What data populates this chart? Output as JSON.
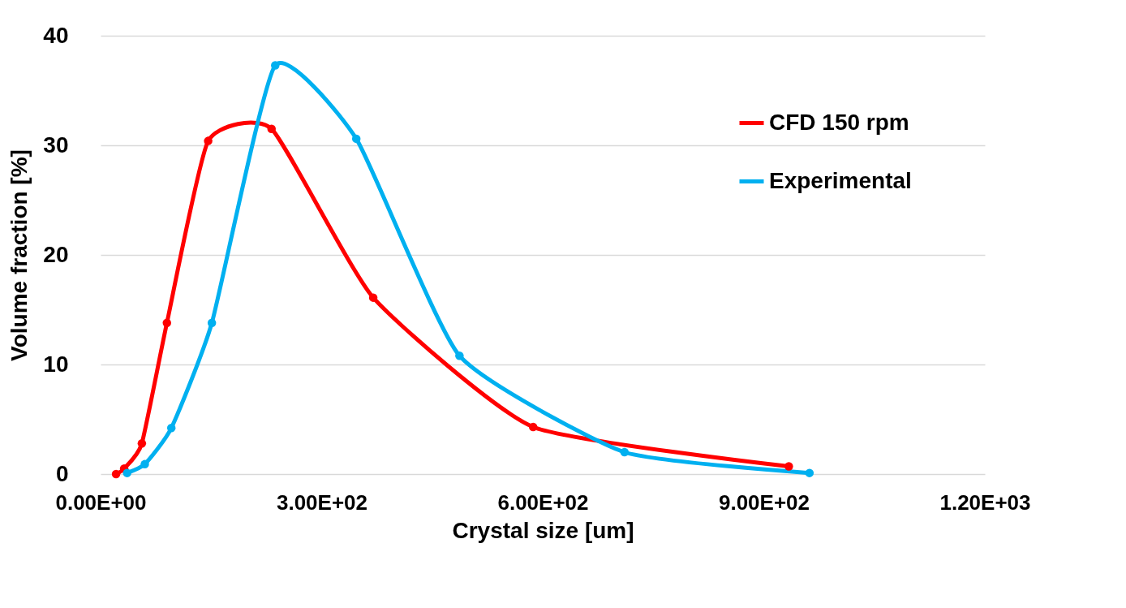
{
  "chart_data": {
    "type": "line",
    "xlabel": "Crystal size [um]",
    "ylabel": "Volume fraction [%]",
    "xlim": [
      0,
      1200
    ],
    "xticks": [
      {
        "value": 0,
        "label": "0.00E+00"
      },
      {
        "value": 300,
        "label": "3.00E+02"
      },
      {
        "value": 600,
        "label": "6.00E+02"
      },
      {
        "value": 900,
        "label": "9.00E+02"
      },
      {
        "value": 1200,
        "label": "1.20E+03"
      }
    ],
    "ylim": [
      0,
      40
    ],
    "yticks": [
      0,
      10,
      20,
      30,
      40
    ],
    "grid": "y",
    "legend": "top right",
    "marker": "circle",
    "line_style": "solid",
    "series": [
      {
        "name": "CFD 150 rpm",
        "color": "#ff0000",
        "x": [
          21,
          32,
          56,
          90,
          146,
          232,
          370,
          587,
          934
        ],
        "values": [
          0,
          0.5,
          2.8,
          13.8,
          30.4,
          31.5,
          16.1,
          4.3,
          0.7
        ]
      },
      {
        "name": "Experimental",
        "color": "#00b0f0",
        "x": [
          36,
          60,
          96,
          151,
          237,
          347,
          487,
          711,
          962
        ],
        "values": [
          0.1,
          0.9,
          4.2,
          13.8,
          37.3,
          30.6,
          10.8,
          2.0,
          0.1
        ]
      }
    ]
  }
}
